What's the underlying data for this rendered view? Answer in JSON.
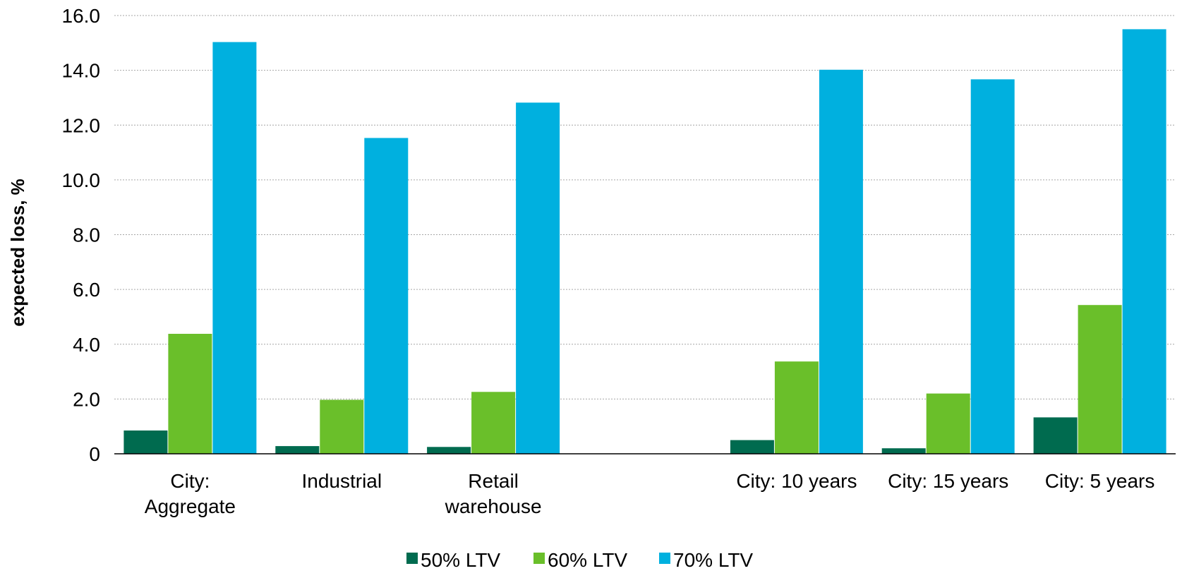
{
  "chart_data": {
    "type": "bar",
    "title": "",
    "xlabel": "",
    "ylabel": "expected loss, %",
    "ylim": [
      0,
      16
    ],
    "yticks": [
      "0",
      "2.0",
      "4.0",
      "6.0",
      "8.0",
      "10.0",
      "12.0",
      "14.0",
      "16.0"
    ],
    "ytick_values": [
      0,
      2,
      4,
      6,
      8,
      10,
      12,
      14,
      16
    ],
    "grid": true,
    "legend_position": "bottom",
    "categories": [
      [
        "City:",
        "Aggregate"
      ],
      [
        "Industrial"
      ],
      [
        "Retail",
        "warehouse"
      ],
      [],
      [
        "City: 10 years"
      ],
      [
        "City: 15 years"
      ],
      [
        "City: 5 years"
      ]
    ],
    "series": [
      {
        "name": "50% LTV",
        "color": "#006b4f",
        "values": [
          0.85,
          0.28,
          0.25,
          null,
          0.5,
          0.2,
          1.33
        ]
      },
      {
        "name": "60% LTV",
        "color": "#6abf2a",
        "values": [
          4.38,
          1.97,
          2.26,
          null,
          3.37,
          2.2,
          5.43
        ]
      },
      {
        "name": "70% LTV",
        "color": "#00b0df",
        "values": [
          15.03,
          11.53,
          12.82,
          null,
          14.02,
          13.67,
          15.5
        ]
      }
    ]
  }
}
